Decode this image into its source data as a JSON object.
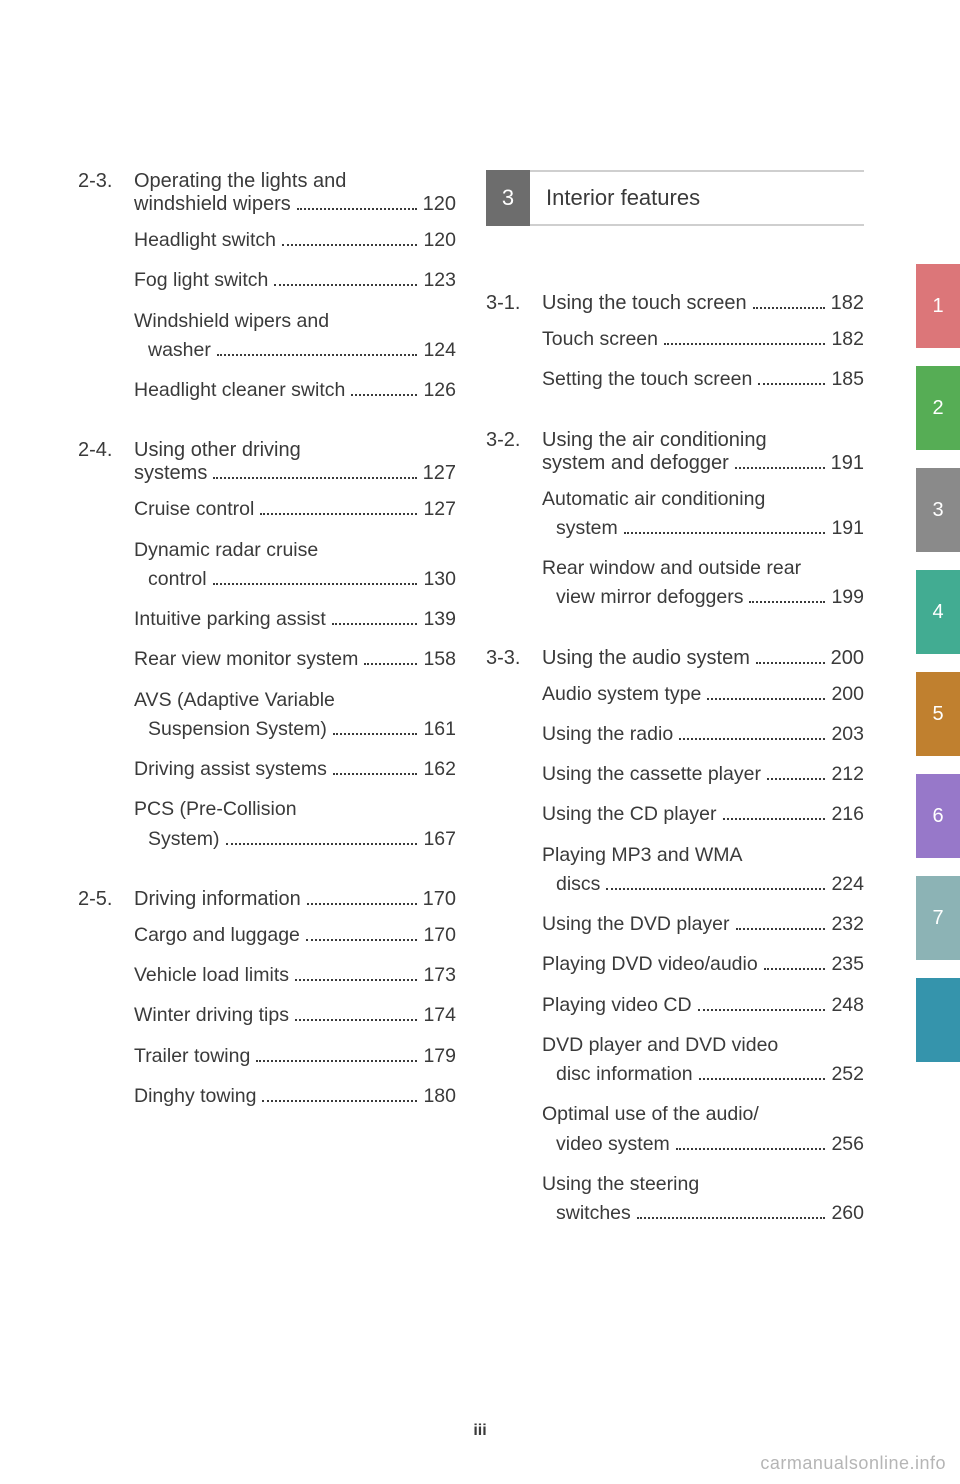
{
  "page_number": "iii",
  "watermark": "carmanualsonline.info",
  "left_col": {
    "groups": [
      {
        "num": "2-3.",
        "title_lines": [
          "Operating the lights and",
          "windshield wipers"
        ],
        "page": "120",
        "entries": [
          {
            "lines": [
              "Headlight switch"
            ],
            "page": "120"
          },
          {
            "lines": [
              "Fog light switch"
            ],
            "page": "123"
          },
          {
            "lines": [
              "Windshield wipers and",
              "washer"
            ],
            "page": "124"
          },
          {
            "lines": [
              "Headlight cleaner switch"
            ],
            "page": "126"
          }
        ]
      },
      {
        "num": "2-4.",
        "title_lines": [
          "Using other driving",
          "systems"
        ],
        "page": "127",
        "entries": [
          {
            "lines": [
              "Cruise control"
            ],
            "page": "127"
          },
          {
            "lines": [
              "Dynamic radar cruise",
              "control"
            ],
            "page": "130"
          },
          {
            "lines": [
              "Intuitive parking assist"
            ],
            "page": "139"
          },
          {
            "lines": [
              "Rear view monitor system"
            ],
            "page": "158"
          },
          {
            "lines": [
              "AVS (Adaptive Variable",
              "Suspension System)"
            ],
            "page": "161"
          },
          {
            "lines": [
              "Driving assist systems"
            ],
            "page": "162"
          },
          {
            "lines": [
              "PCS (Pre-Collision",
              "System)"
            ],
            "page": "167"
          }
        ]
      },
      {
        "num": "2-5.",
        "title_lines": [
          "Driving information"
        ],
        "page": "170",
        "entries": [
          {
            "lines": [
              "Cargo and luggage"
            ],
            "page": "170"
          },
          {
            "lines": [
              "Vehicle load limits"
            ],
            "page": "173"
          },
          {
            "lines": [
              "Winter driving tips"
            ],
            "page": "174"
          },
          {
            "lines": [
              "Trailer towing"
            ],
            "page": "179"
          },
          {
            "lines": [
              "Dinghy towing"
            ],
            "page": "180"
          }
        ]
      }
    ]
  },
  "right_col": {
    "section": {
      "num": "3",
      "title": "Interior features",
      "tab_color": "#6d6d6d"
    },
    "groups": [
      {
        "num": "3-1.",
        "title_lines": [
          "Using the touch screen"
        ],
        "page": "182",
        "entries": [
          {
            "lines": [
              "Touch screen"
            ],
            "page": "182"
          },
          {
            "lines": [
              "Setting the touch screen"
            ],
            "page": "185"
          }
        ]
      },
      {
        "num": "3-2.",
        "title_lines": [
          "Using the air conditioning",
          "system and defogger"
        ],
        "page": "191",
        "entries": [
          {
            "lines": [
              "Automatic air conditioning",
              "system"
            ],
            "page": "191"
          },
          {
            "lines": [
              "Rear window and outside rear",
              "view mirror defoggers"
            ],
            "page": "199"
          }
        ]
      },
      {
        "num": "3-3.",
        "title_lines": [
          "Using the audio system"
        ],
        "page": "200",
        "entries": [
          {
            "lines": [
              "Audio system type"
            ],
            "page": "200"
          },
          {
            "lines": [
              "Using the radio"
            ],
            "page": "203"
          },
          {
            "lines": [
              "Using the cassette player"
            ],
            "page": "212"
          },
          {
            "lines": [
              "Using the CD player"
            ],
            "page": "216"
          },
          {
            "lines": [
              "Playing MP3 and WMA",
              "discs"
            ],
            "page": "224"
          },
          {
            "lines": [
              "Using the DVD player"
            ],
            "page": "232"
          },
          {
            "lines": [
              "Playing DVD video/audio"
            ],
            "page": "235"
          },
          {
            "lines": [
              "Playing video CD"
            ],
            "page": "248"
          },
          {
            "lines": [
              "DVD player and DVD video",
              "disc information"
            ],
            "page": "252"
          },
          {
            "lines": [
              "Optimal use of the audio/",
              "video system"
            ],
            "page": "256"
          },
          {
            "lines": [
              "Using the steering",
              "switches"
            ],
            "page": "260"
          }
        ]
      }
    ]
  },
  "side_tabs": [
    {
      "label": "1",
      "color": "#dc7679"
    },
    {
      "label": "2",
      "color": "#56ad55"
    },
    {
      "label": "3",
      "color": "#8a8a8a"
    },
    {
      "label": "4",
      "color": "#42ac92"
    },
    {
      "label": "5",
      "color": "#c0802f"
    },
    {
      "label": "6",
      "color": "#9778c9"
    },
    {
      "label": "7",
      "color": "#8cb3b5"
    },
    {
      "label": "",
      "color": "#3594ac"
    }
  ]
}
